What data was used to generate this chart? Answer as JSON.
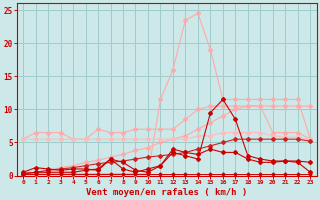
{
  "x": [
    0,
    1,
    2,
    3,
    4,
    5,
    6,
    7,
    8,
    9,
    10,
    11,
    12,
    13,
    14,
    15,
    16,
    17,
    18,
    19,
    20,
    21,
    22,
    23
  ],
  "peak_line": [
    0.3,
    0.3,
    0.3,
    0.3,
    0.3,
    0.3,
    0.3,
    0.3,
    0.3,
    0.3,
    0.3,
    11.5,
    16.0,
    23.5,
    24.5,
    19.0,
    11.5,
    11.5,
    11.5,
    11.5,
    11.5,
    11.5,
    11.5,
    5.5
  ],
  "upper_pink": [
    5.5,
    6.5,
    6.5,
    6.5,
    5.5,
    5.5,
    7.0,
    6.5,
    6.5,
    7.0,
    7.0,
    7.0,
    7.0,
    8.5,
    10.0,
    10.5,
    10.5,
    10.5,
    10.5,
    10.5,
    6.5,
    6.5,
    6.5,
    5.5
  ],
  "diag_pink": [
    0.3,
    0.5,
    0.8,
    1.2,
    1.5,
    2.0,
    2.3,
    2.8,
    3.2,
    3.8,
    4.2,
    5.0,
    5.5,
    6.0,
    7.0,
    8.0,
    9.0,
    10.0,
    10.5,
    10.5,
    10.5,
    10.5,
    10.5,
    10.5
  ],
  "flat_pink": [
    5.5,
    5.5,
    5.5,
    5.5,
    5.5,
    5.5,
    5.5,
    5.5,
    5.5,
    5.5,
    5.5,
    5.5,
    5.5,
    5.5,
    6.0,
    6.0,
    6.5,
    6.5,
    6.5,
    6.5,
    6.0,
    5.8,
    5.8,
    5.5
  ],
  "mid_dark": [
    0.5,
    1.2,
    1.0,
    0.8,
    1.0,
    1.0,
    0.8,
    2.5,
    1.0,
    0.5,
    1.0,
    1.5,
    4.0,
    3.5,
    3.2,
    4.0,
    3.5,
    3.5,
    2.5,
    2.0,
    2.0,
    2.2,
    2.2,
    2.0
  ],
  "low_dark1": [
    0.3,
    0.5,
    0.5,
    0.5,
    0.5,
    0.8,
    1.0,
    2.5,
    2.0,
    0.8,
    0.5,
    1.5,
    3.5,
    3.0,
    2.5,
    9.5,
    11.5,
    8.5,
    3.0,
    2.5,
    2.2,
    2.2,
    2.0,
    0.5
  ],
  "low_dark2": [
    0.3,
    0.5,
    0.8,
    1.0,
    1.2,
    1.5,
    1.8,
    2.0,
    2.2,
    2.5,
    2.8,
    3.0,
    3.2,
    3.5,
    4.0,
    4.5,
    5.0,
    5.5,
    5.5,
    5.5,
    5.5,
    5.5,
    5.5,
    5.2
  ],
  "flat_red": [
    0.3,
    0.3,
    0.3,
    0.3,
    0.3,
    0.3,
    0.3,
    0.3,
    0.3,
    0.3,
    0.3,
    0.3,
    0.3,
    0.3,
    0.3,
    0.3,
    0.3,
    0.3,
    0.3,
    0.3,
    0.3,
    0.3,
    0.3,
    0.3
  ],
  "bg_color": "#cce8e8",
  "grid_color": "#a0cccc",
  "color_peak": "#ffaaaa",
  "color_upper_pink": "#ffaaaa",
  "color_diag_pink": "#ffaaaa",
  "color_flat_pink": "#ffbbbb",
  "color_mid_dark": "#cc0000",
  "color_low_dark1": "#cc0000",
  "color_low_dark2": "#cc2222",
  "color_flat_red": "#cc0000",
  "xlabel": "Vent moyen/en rafales ( km/h )",
  "xlabel_color": "#cc0000",
  "tick_color": "#cc0000",
  "ylim": [
    0,
    26
  ],
  "xlim": [
    -0.5,
    23.5
  ],
  "yticks": [
    0,
    5,
    10,
    15,
    20,
    25
  ],
  "xticks": [
    0,
    1,
    2,
    3,
    4,
    5,
    6,
    7,
    8,
    9,
    10,
    11,
    12,
    13,
    14,
    15,
    16,
    17,
    18,
    19,
    20,
    21,
    22,
    23
  ]
}
